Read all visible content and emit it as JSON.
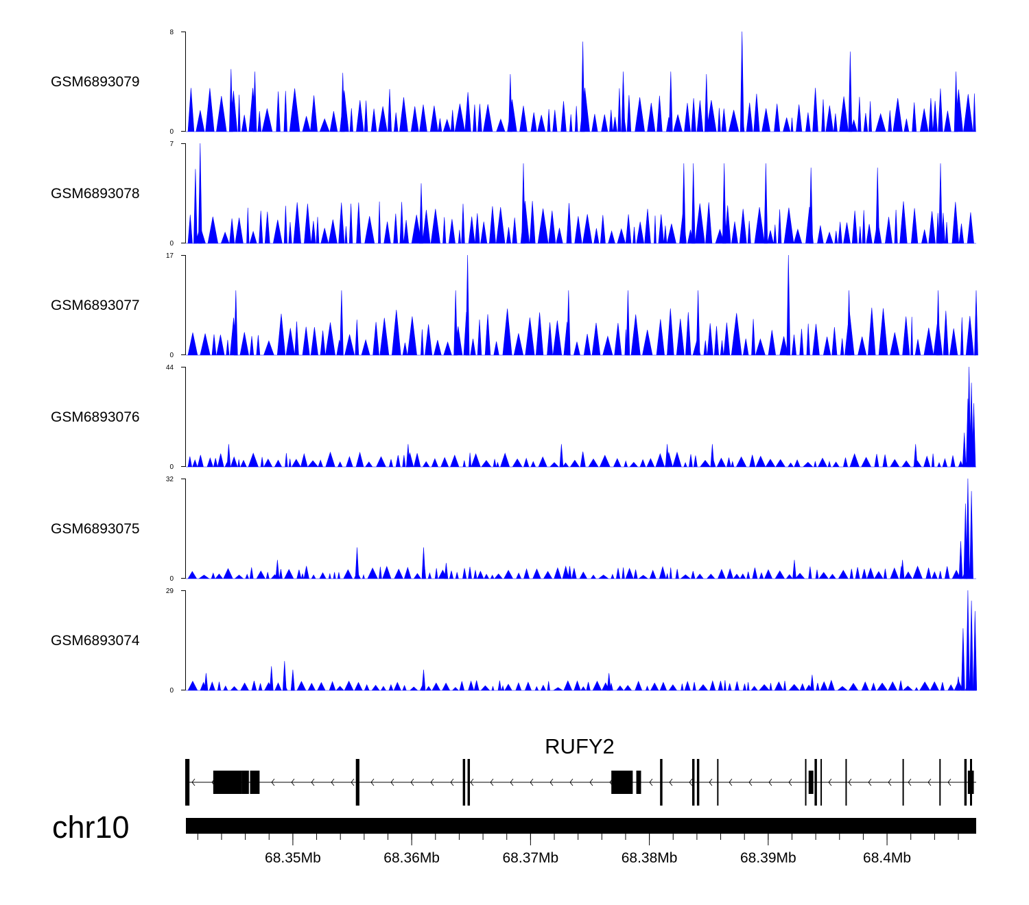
{
  "chart_data": {
    "type": "area",
    "title": "",
    "colors": {
      "signal": "#0000ff",
      "axis": "#000000",
      "gene": "#000000"
    },
    "chromosome": "chr10",
    "genomic_range_mb": [
      68.341,
      68.4075
    ],
    "x_ticks": [
      {
        "value": 68.35,
        "label": "68.35Mb"
      },
      {
        "value": 68.36,
        "label": "68.36Mb"
      },
      {
        "value": 68.37,
        "label": "68.37Mb"
      },
      {
        "value": 68.38,
        "label": "68.38Mb"
      },
      {
        "value": 68.39,
        "label": "68.39Mb"
      },
      {
        "value": 68.4,
        "label": "68.4Mb"
      }
    ],
    "series": [
      {
        "name": "GSM6893079",
        "ylim": [
          0,
          8
        ],
        "ymin_label": "0",
        "ymax_label": "8",
        "baseline": 2.6,
        "peaks": [
          [
            68.3448,
            5.0
          ],
          [
            68.3468,
            4.8
          ],
          [
            68.3542,
            4.7
          ],
          [
            68.3683,
            4.6
          ],
          [
            68.3744,
            7.2
          ],
          [
            68.3778,
            4.8
          ],
          [
            68.3818,
            4.8
          ],
          [
            68.3848,
            4.6
          ],
          [
            68.3878,
            8.0
          ],
          [
            68.3969,
            6.4
          ],
          [
            68.4058,
            4.8
          ]
        ]
      },
      {
        "name": "GSM6893078",
        "ylim": [
          0,
          7
        ],
        "ymin_label": "0",
        "ymax_label": "7",
        "baseline": 2.2,
        "peaks": [
          [
            68.3418,
            5.2
          ],
          [
            68.3422,
            7.0
          ],
          [
            68.3608,
            4.2
          ],
          [
            68.3694,
            5.6
          ],
          [
            68.3829,
            5.6
          ],
          [
            68.3837,
            5.6
          ],
          [
            68.3863,
            5.6
          ],
          [
            68.3898,
            5.6
          ],
          [
            68.3936,
            5.3
          ],
          [
            68.3992,
            5.3
          ],
          [
            68.4045,
            5.6
          ]
        ]
      },
      {
        "name": "GSM6893077",
        "ylim": [
          0,
          17
        ],
        "ymin_label": "0",
        "ymax_label": "17",
        "baseline": 6,
        "peaks": [
          [
            68.3452,
            11
          ],
          [
            68.3541,
            11
          ],
          [
            68.3637,
            11
          ],
          [
            68.3647,
            17
          ],
          [
            68.3732,
            11
          ],
          [
            68.3782,
            11
          ],
          [
            68.3841,
            11
          ],
          [
            68.3917,
            17
          ],
          [
            68.3968,
            11
          ],
          [
            68.4043,
            11
          ],
          [
            68.4075,
            11
          ]
        ]
      },
      {
        "name": "GSM6893076",
        "ylim": [
          0,
          44
        ],
        "ymin_label": "0",
        "ymax_label": "44",
        "baseline": 5,
        "peaks": [
          [
            68.3446,
            10
          ],
          [
            68.3597,
            10
          ],
          [
            68.3726,
            10
          ],
          [
            68.3815,
            10
          ],
          [
            68.3853,
            10
          ],
          [
            68.4024,
            10
          ],
          [
            68.4065,
            15
          ],
          [
            68.4068,
            30
          ],
          [
            68.4069,
            44
          ],
          [
            68.4071,
            37
          ],
          [
            68.4073,
            28
          ]
        ]
      },
      {
        "name": "GSM6893075",
        "ylim": [
          0,
          32
        ],
        "ymin_label": "0",
        "ymax_label": "32",
        "baseline": 3,
        "peaks": [
          [
            68.3487,
            6
          ],
          [
            68.3554,
            10
          ],
          [
            68.361,
            10
          ],
          [
            68.3629,
            5
          ],
          [
            68.3733,
            4
          ],
          [
            68.3922,
            6
          ],
          [
            68.4013,
            6
          ],
          [
            68.4062,
            12
          ],
          [
            68.4066,
            24
          ],
          [
            68.4068,
            32
          ],
          [
            68.4071,
            28
          ]
        ]
      },
      {
        "name": "GSM6893074",
        "ylim": [
          0,
          29
        ],
        "ymin_label": "0",
        "ymax_label": "29",
        "baseline": 2.2,
        "peaks": [
          [
            68.3427,
            5
          ],
          [
            68.3482,
            7
          ],
          [
            68.3493,
            8.5
          ],
          [
            68.35,
            6
          ],
          [
            68.361,
            6
          ],
          [
            68.3766,
            5
          ],
          [
            68.3937,
            4.5
          ],
          [
            68.406,
            4
          ],
          [
            68.4064,
            18
          ],
          [
            68.4068,
            29
          ],
          [
            68.4071,
            26
          ],
          [
            68.4074,
            23
          ]
        ]
      }
    ],
    "gene": {
      "name": "RUFY2",
      "strand": "-",
      "start_mb": 68.341,
      "end_mb": 68.4075,
      "exons_mb": [
        [
          68.341,
          68.3413
        ],
        [
          68.3433,
          68.3457
        ],
        [
          68.3457,
          68.3463
        ],
        [
          68.3464,
          68.3472
        ],
        [
          68.3553,
          68.3556
        ],
        [
          68.3643,
          68.3645
        ],
        [
          68.3647,
          68.3649
        ],
        [
          68.3768,
          68.3786
        ],
        [
          68.3789,
          68.3793
        ],
        [
          68.3809,
          68.3811
        ],
        [
          68.3836,
          68.3838
        ],
        [
          68.384,
          68.3842
        ],
        [
          68.3857,
          68.3858
        ],
        [
          68.3931,
          68.3932
        ],
        [
          68.3934,
          68.3938
        ],
        [
          68.3939,
          68.3941
        ],
        [
          68.3944,
          68.3945
        ],
        [
          68.3965,
          68.3966
        ],
        [
          68.4013,
          68.4014
        ],
        [
          68.4044,
          68.4045
        ],
        [
          68.4065,
          68.4067
        ],
        [
          68.4068,
          68.4073
        ]
      ]
    }
  }
}
